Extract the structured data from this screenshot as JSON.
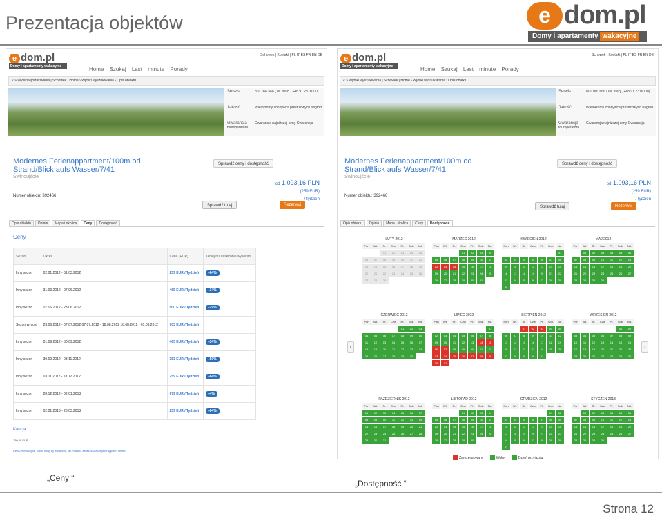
{
  "slide": {
    "title": "Prezentacja objektów",
    "page": "Strona 12",
    "captions": [
      "„Ceny “",
      "„Dostępność “"
    ]
  },
  "logo": {
    "mark": "e",
    "name": "dom.pl",
    "sub": "Domy i apartamenty",
    "sub2": "wakacyjne"
  },
  "site": {
    "logo": "dom.pl",
    "logo_sub": "Domy i apartamenty wakacyjne",
    "toplinks": "Schowek | Kontakt | PL IT ES FR EN DE",
    "nav": [
      "Home",
      "Szukaj",
      "Last minute",
      "Porady"
    ],
    "crumb": "« » Wyniki wyszukiwania | Schowek | Home › Wyniki wyszukiwania › Opis obiektu",
    "side": [
      {
        "k": "Serwis",
        "v": "801 066 666 (Tel. stacj., +48 91 2316000)"
      },
      {
        "k": "Jakość",
        "v": "Wielokrotny zdobywca prestiżowych nagród"
      },
      {
        "k": "Gwarancja",
        "v": "Gwarancja najniższej ceny Gwarancja touroperatora"
      }
    ],
    "title1": "Modernes Ferienappartment/100m od",
    "title2": "Strand/Blick aufs Wasser/7/41",
    "city": "Świnoujście",
    "objnum": "Numer obiektu: 392466",
    "price_from": "od",
    "price": "1.093,16 PLN",
    "price_eur": "(259 EUR)",
    "price_per": "/ tydzień",
    "check": "Sprawdź tutaj",
    "book": "Rezerwuj",
    "avail": "Sprawdź ceny i dostępność",
    "tabs": [
      "Opis obiektu",
      "Opinie",
      "Mapa i okolica",
      "Ceny",
      "Dostępność"
    ]
  },
  "prices": {
    "heading": "Ceny",
    "headers": [
      "Sezon",
      "Okres",
      "Cena (EUR)",
      "Taniej niż w sezonie wysokim"
    ],
    "rows": [
      {
        "s": "Inny sezon",
        "o": "02.01.2012 - 31.03.2012",
        "c": "259 EUR / Tydzień",
        "d": "-64%"
      },
      {
        "s": "Inny sezon",
        "o": "31.03.2012 - 07.06.2012",
        "c": "465 EUR / Tydzień",
        "d": "-34%"
      },
      {
        "s": "Inny sezon",
        "o": "07.06.2012 - 23.06.2012",
        "c": "500 EUR / Tydzień",
        "d": "-29%"
      },
      {
        "s": "Sezon wysoki",
        "o": "23.06.2012 - 07.07.2012 07.07.2012 - 18.08.2012 18.08.2012 - 01.09.2012",
        "c": "703 EUR / Tydzień",
        "d": ""
      },
      {
        "s": "Inny sezon",
        "o": "01.09.2012 - 30.09.2012",
        "c": "465 EUR / Tydzień",
        "d": "-34%"
      },
      {
        "s": "Inny sezon",
        "o": "30.09.2012 - 03.11.2012",
        "c": "353 EUR / Tydzień",
        "d": "-50%"
      },
      {
        "s": "Inny sezon",
        "o": "03.11.2012 - 28.12.2012",
        "c": "259 EUR / Tydzień",
        "d": "-64%"
      },
      {
        "s": "Inny sezon",
        "o": "28.12.2012 - 02.01.2013",
        "c": "679 EUR / Tydzień",
        "d": "-4%"
      },
      {
        "s": "Inny sezon",
        "o": "02.01.2013 - 23.03.2013",
        "c": "259 EUR / Tydzień",
        "d": "-64%"
      }
    ],
    "kaucja": "Kaucja",
    "kaucja_val": "150,00 EUR",
    "promo": "Cena promocyjna. Kliknij tutaj, by zobaczyć, jak możesz zaoszczędzić wybierając ten obiekt."
  },
  "calendar": {
    "days": [
      "Pon",
      "Wt.",
      "Śr.",
      "Czw",
      "Pt.",
      "Sob.",
      "Nd."
    ],
    "months": [
      {
        "n": "LUTY 2012",
        "o": 2,
        "c": 29
      },
      {
        "n": "MARZEC 2012",
        "o": 3,
        "c": 31
      },
      {
        "n": "KWIECIEŃ 2012",
        "o": 6,
        "c": 30
      },
      {
        "n": "MAJ 2012",
        "o": 1,
        "c": 31
      },
      {
        "n": "CZERWIEC 2012",
        "o": 4,
        "c": 30
      },
      {
        "n": "LIPIEC 2012",
        "o": 6,
        "c": 31
      },
      {
        "n": "SIERPIEŃ 2012",
        "o": 2,
        "c": 31
      },
      {
        "n": "WRZESIEŃ 2012",
        "o": 5,
        "c": 30
      },
      {
        "n": "PAŹDZIERNIK 2012",
        "o": 0,
        "c": 31
      },
      {
        "n": "LISTOPAD 2012",
        "o": 3,
        "c": 30
      },
      {
        "n": "GRUDZIEŃ 2012",
        "o": 5,
        "c": 31
      },
      {
        "n": "STYCZEŃ 2013",
        "o": 1,
        "c": 31
      }
    ],
    "legend": [
      "Zarezerwowany",
      "Wolny",
      "Dzień przyjazdu"
    ],
    "colors": {
      "free": "#3aa33a",
      "booked": "#d9352b",
      "past": "#e8e8e8"
    }
  }
}
